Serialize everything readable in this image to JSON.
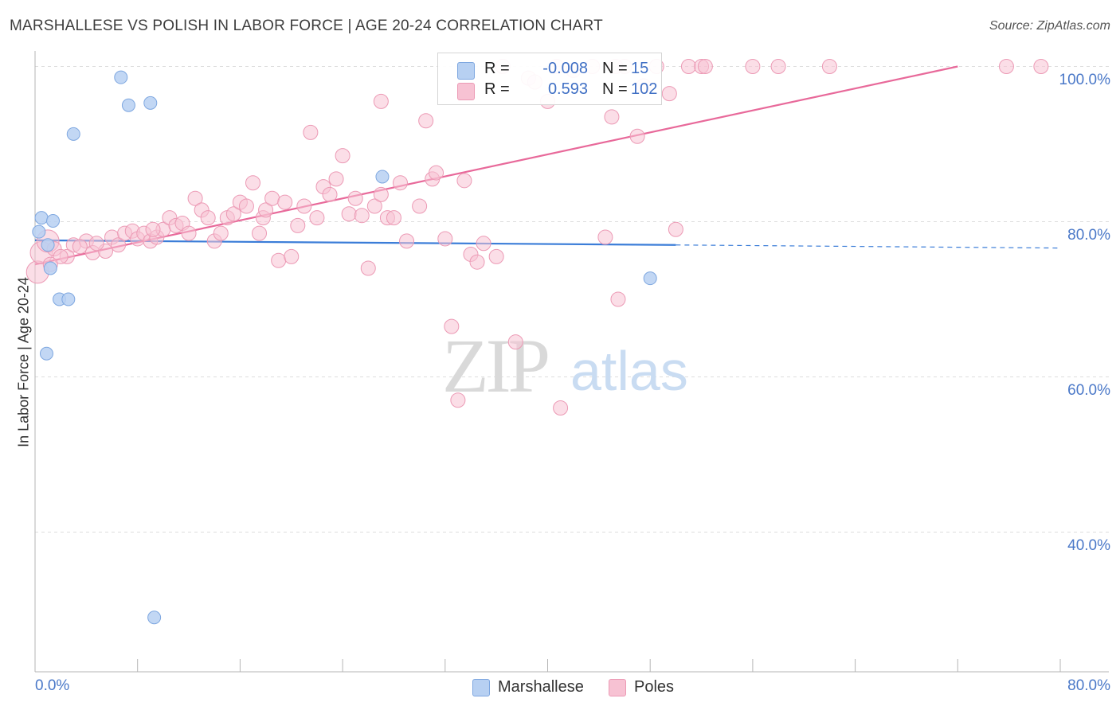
{
  "header": {
    "title": "MARSHALLESE VS POLISH IN LABOR FORCE | AGE 20-24 CORRELATION CHART",
    "source": "Source: ZipAtlas.com"
  },
  "watermark": {
    "zip": "ZIP",
    "atlas": "atlas"
  },
  "colors": {
    "blue_fill": "#b7d0f2",
    "blue_stroke": "#7ea7e0",
    "blue_line": "#3b7dd8",
    "pink_fill": "#f7c2d3",
    "pink_stroke": "#ec9ab5",
    "pink_line": "#e8699a",
    "tick_text": "#4a78c8",
    "grid": "#dddddd"
  },
  "legend": {
    "r_label": "R =",
    "n_label": "N =",
    "rows": [
      {
        "series": "Marshallese",
        "r": "-0.008",
        "n": "15"
      },
      {
        "series": "Poles",
        "r": "0.593",
        "n": "102"
      }
    ]
  },
  "chart_data": {
    "type": "scatter",
    "title": "MARSHALLESE VS POLISH IN LABOR FORCE | AGE 20-24 CORRELATION CHART",
    "xlabel": "",
    "ylabel": "In Labor Force | Age 20-24",
    "xlim": [
      0,
      80
    ],
    "ylim": [
      22,
      102
    ],
    "x_tick_labels": [
      {
        "value": 0,
        "label": "0.0%"
      },
      {
        "value": 80,
        "label": "80.0%"
      }
    ],
    "y_tick_labels": [
      {
        "value": 100,
        "label": "100.0%"
      },
      {
        "value": 80,
        "label": "80.0%"
      },
      {
        "value": 60,
        "label": "60.0%"
      },
      {
        "value": 40,
        "label": "40.0%"
      }
    ],
    "y_gridlines": [
      100,
      80,
      60,
      40
    ],
    "x_minor_ticks": [
      0,
      8,
      16,
      24,
      32,
      40,
      48,
      56,
      64,
      72,
      80
    ],
    "series": [
      {
        "name": "Marshallese",
        "color": "#b7d0f2",
        "points": [
          {
            "x": 0.3,
            "y": 78.7
          },
          {
            "x": 0.5,
            "y": 80.5
          },
          {
            "x": 1.4,
            "y": 80.1
          },
          {
            "x": 1.2,
            "y": 74.0
          },
          {
            "x": 1.0,
            "y": 77.0
          },
          {
            "x": 1.9,
            "y": 70.0
          },
          {
            "x": 2.6,
            "y": 70.0
          },
          {
            "x": 0.9,
            "y": 63.0
          },
          {
            "x": 3.0,
            "y": 91.3
          },
          {
            "x": 6.7,
            "y": 98.6
          },
          {
            "x": 7.3,
            "y": 95.0
          },
          {
            "x": 9.0,
            "y": 95.3
          },
          {
            "x": 9.3,
            "y": 29.0
          },
          {
            "x": 27.1,
            "y": 85.8
          },
          {
            "x": 48.0,
            "y": 72.7
          }
        ],
        "trend": {
          "x0": 0,
          "y0": 77.6,
          "x1": 50,
          "y1": 77.0,
          "dashed_to_x": 80,
          "dashed_to_y": 76.6
        }
      },
      {
        "name": "Poles",
        "color": "#f7c2d3",
        "points": [
          {
            "x": 0.2,
            "y": 73.5
          },
          {
            "x": 0.5,
            "y": 76.0
          },
          {
            "x": 1.0,
            "y": 77.5
          },
          {
            "x": 1.5,
            "y": 76.5
          },
          {
            "x": 2.5,
            "y": 75.5
          },
          {
            "x": 3.0,
            "y": 77.0
          },
          {
            "x": 4.0,
            "y": 77.5
          },
          {
            "x": 4.5,
            "y": 76.0
          },
          {
            "x": 5.5,
            "y": 76.2
          },
          {
            "x": 6.0,
            "y": 78.0
          },
          {
            "x": 6.5,
            "y": 77.0
          },
          {
            "x": 7.0,
            "y": 78.5
          },
          {
            "x": 7.6,
            "y": 78.8
          },
          {
            "x": 8.0,
            "y": 77.8
          },
          {
            "x": 8.5,
            "y": 78.5
          },
          {
            "x": 9.0,
            "y": 77.5
          },
          {
            "x": 9.5,
            "y": 78.0
          },
          {
            "x": 10.0,
            "y": 79.0
          },
          {
            "x": 10.5,
            "y": 80.5
          },
          {
            "x": 11.0,
            "y": 79.5
          },
          {
            "x": 11.5,
            "y": 79.8
          },
          {
            "x": 12.0,
            "y": 78.5
          },
          {
            "x": 12.5,
            "y": 83.0
          },
          {
            "x": 13.0,
            "y": 81.5
          },
          {
            "x": 13.5,
            "y": 80.5
          },
          {
            "x": 14.0,
            "y": 77.5
          },
          {
            "x": 14.5,
            "y": 78.5
          },
          {
            "x": 15.0,
            "y": 80.5
          },
          {
            "x": 15.5,
            "y": 81.0
          },
          {
            "x": 16.0,
            "y": 82.5
          },
          {
            "x": 16.5,
            "y": 82.0
          },
          {
            "x": 17.0,
            "y": 85.0
          },
          {
            "x": 17.5,
            "y": 78.5
          },
          {
            "x": 17.8,
            "y": 80.5
          },
          {
            "x": 18.0,
            "y": 81.5
          },
          {
            "x": 18.5,
            "y": 83.0
          },
          {
            "x": 19.0,
            "y": 75.0
          },
          {
            "x": 19.5,
            "y": 82.5
          },
          {
            "x": 20.0,
            "y": 75.5
          },
          {
            "x": 20.5,
            "y": 79.5
          },
          {
            "x": 21.0,
            "y": 82.0
          },
          {
            "x": 21.5,
            "y": 91.5
          },
          {
            "x": 22.0,
            "y": 80.5
          },
          {
            "x": 22.5,
            "y": 84.5
          },
          {
            "x": 23.0,
            "y": 83.5
          },
          {
            "x": 23.5,
            "y": 85.5
          },
          {
            "x": 24.0,
            "y": 88.5
          },
          {
            "x": 24.5,
            "y": 81.0
          },
          {
            "x": 25.0,
            "y": 83.0
          },
          {
            "x": 25.5,
            "y": 80.8
          },
          {
            "x": 26.0,
            "y": 74.0
          },
          {
            "x": 26.5,
            "y": 82.0
          },
          {
            "x": 27.0,
            "y": 83.5
          },
          {
            "x": 27.5,
            "y": 80.5
          },
          {
            "x": 27.0,
            "y": 95.5
          },
          {
            "x": 28.0,
            "y": 80.5
          },
          {
            "x": 28.5,
            "y": 85.0
          },
          {
            "x": 29.0,
            "y": 77.5
          },
          {
            "x": 30.0,
            "y": 82.0
          },
          {
            "x": 30.5,
            "y": 93.0
          },
          {
            "x": 31.0,
            "y": 85.5
          },
          {
            "x": 31.3,
            "y": 86.3
          },
          {
            "x": 32.0,
            "y": 77.8
          },
          {
            "x": 32.5,
            "y": 66.5
          },
          {
            "x": 33.0,
            "y": 57.0
          },
          {
            "x": 33.5,
            "y": 85.3
          },
          {
            "x": 34.0,
            "y": 75.8
          },
          {
            "x": 34.5,
            "y": 74.8
          },
          {
            "x": 35.0,
            "y": 77.2
          },
          {
            "x": 36.0,
            "y": 75.5
          },
          {
            "x": 37.5,
            "y": 64.5
          },
          {
            "x": 38.5,
            "y": 98.5
          },
          {
            "x": 39.0,
            "y": 98.0
          },
          {
            "x": 40.0,
            "y": 95.5
          },
          {
            "x": 41.0,
            "y": 56.0
          },
          {
            "x": 42.0,
            "y": 99.5
          },
          {
            "x": 43.5,
            "y": 100.0
          },
          {
            "x": 44.5,
            "y": 78.0
          },
          {
            "x": 45.5,
            "y": 70.0
          },
          {
            "x": 45.0,
            "y": 93.5
          },
          {
            "x": 46.0,
            "y": 100.0
          },
          {
            "x": 47.0,
            "y": 91.0
          },
          {
            "x": 47.5,
            "y": 97.5
          },
          {
            "x": 48.5,
            "y": 100.0
          },
          {
            "x": 49.5,
            "y": 96.5
          },
          {
            "x": 50.0,
            "y": 79.0
          },
          {
            "x": 51.0,
            "y": 100.0
          },
          {
            "x": 52.0,
            "y": 100.0
          },
          {
            "x": 52.3,
            "y": 100.0
          },
          {
            "x": 56.0,
            "y": 100.0
          },
          {
            "x": 58.0,
            "y": 100.0
          },
          {
            "x": 62.0,
            "y": 100.0
          },
          {
            "x": 75.8,
            "y": 100.0
          },
          {
            "x": 78.5,
            "y": 100.0
          },
          {
            "x": 36.5,
            "y": 100.0
          },
          {
            "x": 45.3,
            "y": 100.0
          },
          {
            "x": 40.7,
            "y": 100.0
          },
          {
            "x": 2.0,
            "y": 75.5
          },
          {
            "x": 4.8,
            "y": 77.2
          },
          {
            "x": 9.2,
            "y": 79.0
          },
          {
            "x": 3.5,
            "y": 76.8
          },
          {
            "x": 1.2,
            "y": 74.5
          }
        ],
        "trend": {
          "x0": 0,
          "y0": 74.5,
          "x1": 72,
          "y1": 100.0
        }
      }
    ]
  },
  "bottom_legend": [
    {
      "label": "Marshallese"
    },
    {
      "label": "Poles"
    }
  ]
}
